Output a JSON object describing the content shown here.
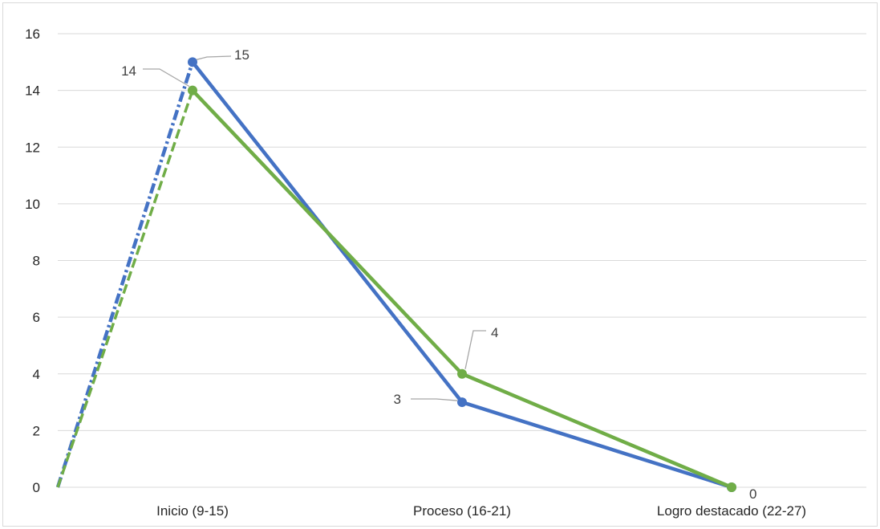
{
  "chart_data": {
    "type": "line",
    "title": "",
    "xlabel": "",
    "ylabel": "",
    "categories": [
      "Inicio (9-15)",
      "Proceso (16-21)",
      "Logro destacado  (22-27)"
    ],
    "ylim": [
      0,
      16
    ],
    "yticks": [
      0,
      2,
      4,
      6,
      8,
      10,
      12,
      14,
      16
    ],
    "grid": true,
    "legend": "none",
    "series": [
      {
        "color": "#4472c4",
        "values": [
          15,
          3,
          0
        ],
        "start_value": 0,
        "data_labels": [
          "15",
          "3",
          "0"
        ]
      },
      {
        "color": "#70ad47",
        "values": [
          14,
          4,
          0
        ],
        "start_value": 0,
        "data_labels": [
          "14",
          "4",
          ""
        ]
      }
    ]
  }
}
